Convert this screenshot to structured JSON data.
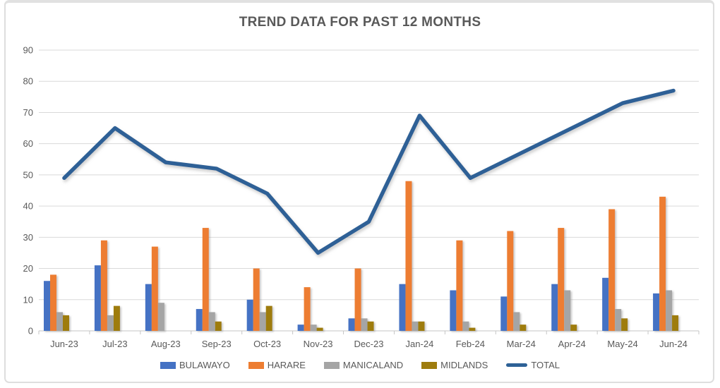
{
  "chart_data": {
    "type": "bar",
    "subtype": "clustered-bars-with-line-overlay",
    "title": "TREND DATA FOR PAST 12 MONTHS",
    "categories": [
      "Jun-23",
      "Jul-23",
      "Aug-23",
      "Sep-23",
      "Oct-23",
      "Nov-23",
      "Dec-23",
      "Jan-24",
      "Feb-24",
      "Mar-24",
      "Apr-24",
      "May-24",
      "Jun-24"
    ],
    "series": [
      {
        "name": "BULAWAYO",
        "type": "bar",
        "color": "#4472C4",
        "values": [
          16,
          21,
          15,
          7,
          10,
          2,
          4,
          15,
          13,
          11,
          15,
          17,
          12
        ]
      },
      {
        "name": "HARARE",
        "type": "bar",
        "color": "#ED7D31",
        "values": [
          18,
          29,
          27,
          33,
          20,
          14,
          20,
          48,
          29,
          32,
          33,
          39,
          43
        ]
      },
      {
        "name": "MANICALAND",
        "type": "bar",
        "color": "#A5A5A5",
        "values": [
          6,
          5,
          9,
          6,
          6,
          2,
          4,
          3,
          3,
          6,
          13,
          7,
          13
        ]
      },
      {
        "name": "MIDLANDS",
        "type": "bar",
        "color": "#9E7C0E",
        "values": [
          5,
          8,
          0,
          3,
          8,
          1,
          3,
          3,
          1,
          2,
          2,
          4,
          5
        ]
      },
      {
        "name": "TOTAL",
        "type": "line",
        "color": "#2D6196",
        "values": [
          49,
          65,
          54,
          52,
          44,
          25,
          35,
          69,
          49,
          57,
          65,
          73,
          77
        ]
      }
    ],
    "y_axis": {
      "min": 0,
      "max": 90,
      "step": 10,
      "tick_labels": [
        "0",
        "10",
        "20",
        "30",
        "40",
        "50",
        "60",
        "70",
        "80",
        "90"
      ]
    },
    "grid": true,
    "legend_position": "bottom",
    "colors": {
      "gridline": "#d9d9d9",
      "axis": "#c6c6c6",
      "title_text": "#595959",
      "tick_text": "#595959",
      "frame_border": "#dedede"
    }
  }
}
